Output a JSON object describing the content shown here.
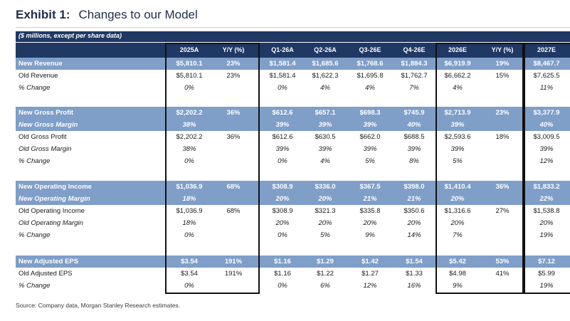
{
  "title": {
    "exhibit": "Exhibit 1:",
    "text": "Changes to our Model"
  },
  "subtitle": "($ millions, except per share data)",
  "columns": [
    "2025A",
    "Y/Y (%)",
    "Q1-26A",
    "Q2-26A",
    "Q3-26E",
    "Q4-26E",
    "2026E",
    "Y/Y (%)",
    "2027E"
  ],
  "rows": [
    {
      "label": "New Revenue",
      "highlight": true,
      "italic": false,
      "values": [
        "$5,810.1",
        "23%",
        "$1,581.4",
        "$1,685.6",
        "$1,768.6",
        "$1,884.3",
        "$6,919.9",
        "19%",
        "$8,467.7"
      ]
    },
    {
      "label": "Old Revenue",
      "highlight": false,
      "italic": false,
      "values": [
        "$5,810.1",
        "23%",
        "$1,581.4",
        "$1,622.3",
        "$1,695.8",
        "$1,762.7",
        "$6,662.2",
        "15%",
        "$7,625.5"
      ]
    },
    {
      "label": "% Change",
      "highlight": false,
      "italic": true,
      "values": [
        "0%",
        "",
        "0%",
        "4%",
        "4%",
        "7%",
        "4%",
        "",
        "11%"
      ]
    },
    {
      "label": "New Gross Profit",
      "highlight": true,
      "italic": false,
      "values": [
        "$2,202.2",
        "36%",
        "$612.6",
        "$657.1",
        "$698.3",
        "$745.9",
        "$2,713.9",
        "23%",
        "$3,377.9"
      ]
    },
    {
      "label": "New Gross Margin",
      "highlight": true,
      "italic": true,
      "values": [
        "38%",
        "",
        "39%",
        "39%",
        "39%",
        "40%",
        "39%",
        "",
        "40%"
      ]
    },
    {
      "label": "Old Gross Profit",
      "highlight": false,
      "italic": false,
      "values": [
        "$2,202.2",
        "36%",
        "$612.6",
        "$630.5",
        "$662.0",
        "$688.5",
        "$2,593.6",
        "18%",
        "$3,009.5"
      ]
    },
    {
      "label": "Old Gross Margin",
      "highlight": false,
      "italic": true,
      "values": [
        "38%",
        "",
        "39%",
        "39%",
        "39%",
        "39%",
        "39%",
        "",
        "39%"
      ]
    },
    {
      "label": "% Change",
      "highlight": false,
      "italic": true,
      "values": [
        "0%",
        "",
        "0%",
        "4%",
        "5%",
        "8%",
        "5%",
        "",
        "12%"
      ]
    },
    {
      "label": "New Operating Income",
      "highlight": true,
      "italic": false,
      "values": [
        "$1,036.9",
        "68%",
        "$308.9",
        "$336.0",
        "$367.5",
        "$398.0",
        "$1,410.4",
        "36%",
        "$1,833.2"
      ]
    },
    {
      "label": "New Operating Margin",
      "highlight": true,
      "italic": true,
      "values": [
        "18%",
        "",
        "20%",
        "20%",
        "21%",
        "21%",
        "20%",
        "",
        "22%"
      ]
    },
    {
      "label": "Old Operating Income",
      "highlight": false,
      "italic": false,
      "values": [
        "$1,036.9",
        "68%",
        "$308.9",
        "$321.3",
        "$335.8",
        "$350.6",
        "$1,316.6",
        "27%",
        "$1,538.8"
      ]
    },
    {
      "label": "Old Operating Margin",
      "highlight": false,
      "italic": true,
      "values": [
        "18%",
        "",
        "20%",
        "20%",
        "20%",
        "20%",
        "20%",
        "",
        "20%"
      ]
    },
    {
      "label": "% Change",
      "highlight": false,
      "italic": true,
      "values": [
        "0%",
        "",
        "0%",
        "5%",
        "9%",
        "14%",
        "7%",
        "",
        "19%"
      ]
    },
    {
      "label": "New Adjusted EPS",
      "highlight": true,
      "italic": false,
      "values": [
        "$3.54",
        "191%",
        "$1.16",
        "$1.29",
        "$1.42",
        "$1.54",
        "$5.42",
        "53%",
        "$7.12"
      ]
    },
    {
      "label": "Old Adjusted EPS",
      "highlight": false,
      "italic": false,
      "values": [
        "$3.54",
        "191%",
        "$1.16",
        "$1.22",
        "$1.27",
        "$1.33",
        "$4.98",
        "41%",
        "$5.99"
      ]
    },
    {
      "label": "% Change",
      "highlight": false,
      "italic": true,
      "values": [
        "0%",
        "",
        "0%",
        "6%",
        "12%",
        "16%",
        "9%",
        "",
        "19%"
      ]
    }
  ],
  "source": "Source: Company data, Morgan Stanley Research estimates."
}
